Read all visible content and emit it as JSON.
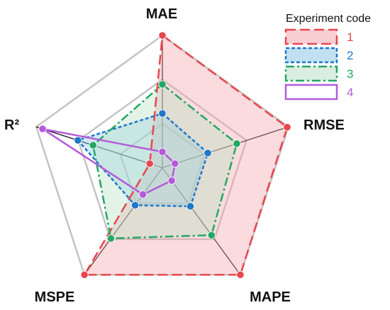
{
  "chart_data": {
    "type": "radar",
    "axes": [
      "MAE",
      "RMSE",
      "MAPE",
      "MSPE",
      "R²"
    ],
    "rmax": 1.0,
    "grid_levels": [
      0.3333,
      0.6667,
      1.0
    ],
    "grid": true,
    "legend_title": "Experiment code",
    "legend_position": "top-right",
    "series": [
      {
        "name": "1",
        "values": [
          1.0,
          0.99,
          1.0,
          1.0,
          0.1
        ],
        "color": "#e8474e",
        "fill": "#f4a6ad",
        "dash": "dashed"
      },
      {
        "name": "2",
        "values": [
          0.41,
          0.36,
          0.36,
          0.35,
          0.67
        ],
        "color": "#1f77c9",
        "fill": "#8ec9ea",
        "dash": "dotted"
      },
      {
        "name": "3",
        "values": [
          0.63,
          0.59,
          0.63,
          0.66,
          0.55
        ],
        "color": "#22a864",
        "fill": "#b9e0c4",
        "dash": "dashdot"
      },
      {
        "name": "4",
        "values": [
          0.12,
          0.1,
          0.12,
          0.25,
          0.95
        ],
        "color": "#b45bd9",
        "fill": "#ffffff",
        "dash": "solid"
      }
    ]
  }
}
